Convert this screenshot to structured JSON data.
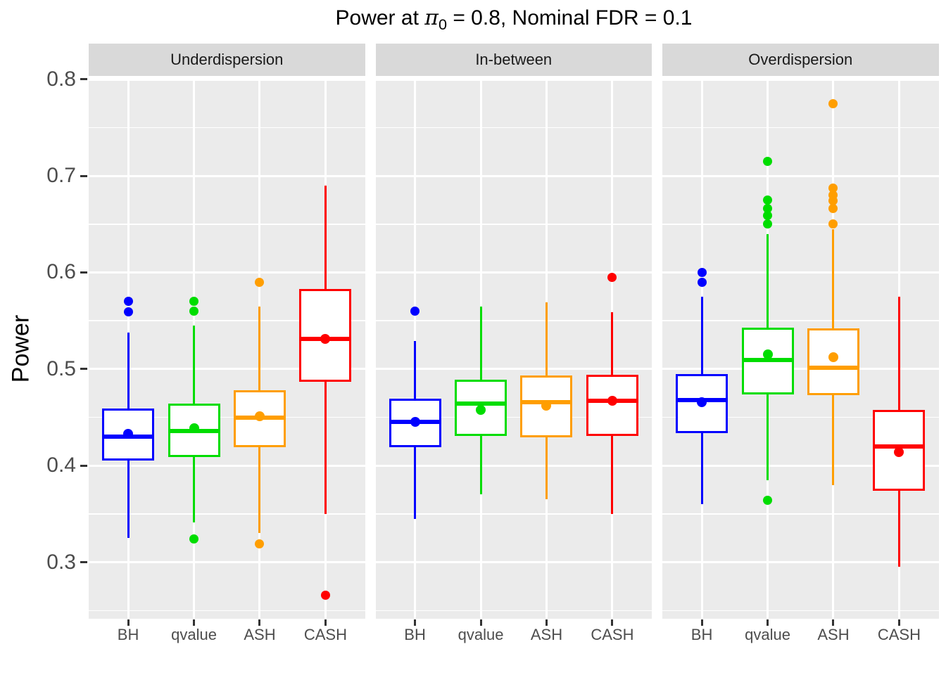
{
  "title": {
    "prefix": "Power at ",
    "pi_symbol": "π",
    "pi_subscript": "0",
    "suffix": " = 0.8, Nominal FDR = 0.1"
  },
  "y_axis": {
    "label": "Power",
    "tick_labels": [
      "0.8",
      "0.7",
      "0.6",
      "0.5",
      "0.4",
      "0.3"
    ],
    "tick_values": [
      0.8,
      0.7,
      0.6,
      0.5,
      0.4,
      0.3
    ]
  },
  "x_axis": {
    "categories": [
      "BH",
      "qvalue",
      "ASH",
      "CASH"
    ]
  },
  "colors": {
    "BH": "#0000FF",
    "qvalue": "#00DD00",
    "ASH": "#FF9E00",
    "CASH": "#FF0000"
  },
  "chart_data": {
    "type": "boxplot",
    "title": "Power at pi0 = 0.8, Nominal FDR = 0.1",
    "ylabel": "Power",
    "xlabel": "",
    "ylim": [
      0.2415,
      0.8005
    ],
    "y_major_gridlines": [
      0.3,
      0.4,
      0.5,
      0.6,
      0.7,
      0.8
    ],
    "y_minor_gridlines": [
      0.25,
      0.35,
      0.45,
      0.55,
      0.65,
      0.75
    ],
    "grid": "on",
    "legend_position": "none",
    "categories": [
      "BH",
      "qvalue",
      "ASH",
      "CASH"
    ],
    "facets": [
      {
        "label": "Underdispersion",
        "boxes": [
          {
            "method": "BH",
            "whisker_low": 0.325,
            "q1": 0.405,
            "median": 0.43,
            "q3": 0.459,
            "whisker_high": 0.538,
            "mean": 0.433,
            "outliers": [
              0.57,
              0.559
            ]
          },
          {
            "method": "qvalue",
            "whisker_low": 0.341,
            "q1": 0.409,
            "median": 0.436,
            "q3": 0.464,
            "whisker_high": 0.545,
            "mean": 0.439,
            "outliers": [
              0.57,
              0.56,
              0.324
            ]
          },
          {
            "method": "ASH",
            "whisker_low": 0.33,
            "q1": 0.419,
            "median": 0.45,
            "q3": 0.478,
            "whisker_high": 0.565,
            "mean": 0.451,
            "outliers": [
              0.59,
              0.319
            ]
          },
          {
            "method": "CASH",
            "whisker_low": 0.35,
            "q1": 0.487,
            "median": 0.531,
            "q3": 0.583,
            "whisker_high": 0.69,
            "mean": 0.531,
            "outliers": [
              0.266
            ]
          }
        ]
      },
      {
        "label": "In-between",
        "boxes": [
          {
            "method": "BH",
            "whisker_low": 0.345,
            "q1": 0.419,
            "median": 0.445,
            "q3": 0.469,
            "whisker_high": 0.529,
            "mean": 0.445,
            "outliers": [
              0.56
            ]
          },
          {
            "method": "qvalue",
            "whisker_low": 0.37,
            "q1": 0.431,
            "median": 0.464,
            "q3": 0.489,
            "whisker_high": 0.565,
            "mean": 0.458,
            "outliers": []
          },
          {
            "method": "ASH",
            "whisker_low": 0.365,
            "q1": 0.429,
            "median": 0.466,
            "q3": 0.493,
            "whisker_high": 0.569,
            "mean": 0.462,
            "outliers": []
          },
          {
            "method": "CASH",
            "whisker_low": 0.35,
            "q1": 0.431,
            "median": 0.467,
            "q3": 0.494,
            "whisker_high": 0.559,
            "mean": 0.467,
            "outliers": [
              0.595
            ]
          }
        ]
      },
      {
        "label": "Overdispersion",
        "boxes": [
          {
            "method": "BH",
            "whisker_low": 0.36,
            "q1": 0.434,
            "median": 0.468,
            "q3": 0.495,
            "whisker_high": 0.575,
            "mean": 0.466,
            "outliers": [
              0.6,
              0.59
            ]
          },
          {
            "method": "qvalue",
            "whisker_low": 0.385,
            "q1": 0.474,
            "median": 0.509,
            "q3": 0.543,
            "whisker_high": 0.64,
            "mean": 0.515,
            "outliers": [
              0.715,
              0.675,
              0.666,
              0.659,
              0.65,
              0.364
            ]
          },
          {
            "method": "ASH",
            "whisker_low": 0.38,
            "q1": 0.473,
            "median": 0.501,
            "q3": 0.542,
            "whisker_high": 0.645,
            "mean": 0.512,
            "outliers": [
              0.775,
              0.687,
              0.68,
              0.674,
              0.666,
              0.65
            ]
          },
          {
            "method": "CASH",
            "whisker_low": 0.295,
            "q1": 0.374,
            "median": 0.42,
            "q3": 0.458,
            "whisker_high": 0.575,
            "mean": 0.414,
            "outliers": []
          }
        ]
      }
    ]
  }
}
